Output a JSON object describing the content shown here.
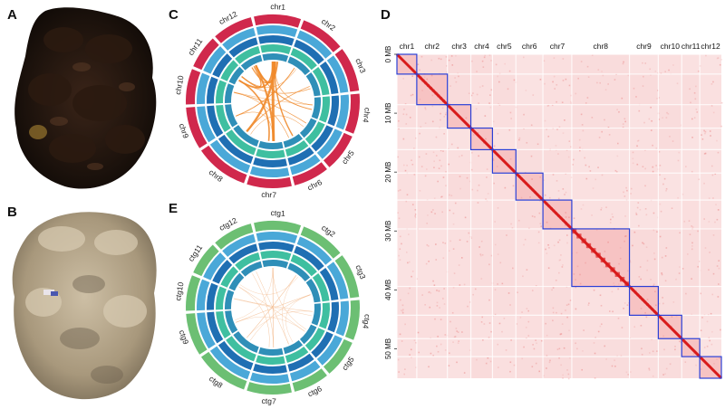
{
  "panels": {
    "A": {
      "letter": "A"
    },
    "B": {
      "letter": "B"
    },
    "C": {
      "letter": "C",
      "segments": [
        "chr1",
        "chr2",
        "chr3",
        "chr4",
        "chr5",
        "chr6",
        "chr7",
        "chr8",
        "chr9",
        "chr10",
        "chr11",
        "chr12"
      ],
      "outer_color": "#d0284c",
      "link_color": "#f08a2b"
    },
    "D": {
      "letter": "D",
      "chromosomes": [
        "chr1",
        "chr2",
        "chr3",
        "chr4",
        "chr5",
        "chr6",
        "chr7",
        "chr8",
        "chr9",
        "chr10",
        "chr11",
        "chr12"
      ],
      "y_ticks": [
        "0 MB",
        "10 MB",
        "20 MB",
        "30 MB",
        "40 MB",
        "50 MB"
      ],
      "box_color": "#2a3fd6",
      "diag_color": "#d81b1b"
    },
    "E": {
      "letter": "E",
      "segments": [
        "ctg1",
        "ctg2",
        "ctg3",
        "ctg4",
        "ctg5",
        "ctg6",
        "ctg7",
        "ctg8",
        "ctg9",
        "ctg10",
        "ctg11",
        "ctg12"
      ],
      "outer_color": "#6cbf73",
      "link_color": "#f2b483"
    }
  }
}
